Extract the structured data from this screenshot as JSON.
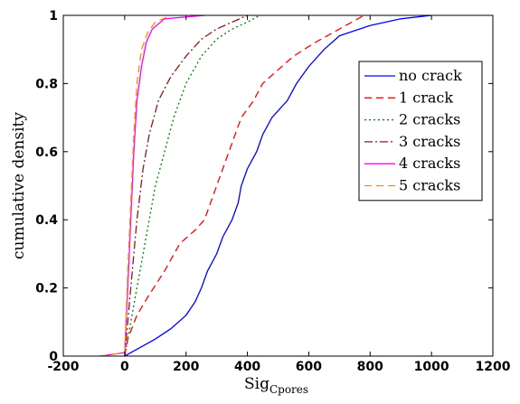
{
  "chart_data": {
    "type": "line",
    "title": "",
    "xlabel_main": "Sig",
    "xlabel_sub": "Cpores",
    "ylabel": "cumulative density",
    "xlim": [
      -200,
      1200
    ],
    "ylim": [
      0,
      1
    ],
    "xticks": [
      -200,
      0,
      200,
      400,
      600,
      800,
      1000,
      1200
    ],
    "yticks": [
      0,
      0.2,
      0.4,
      0.6,
      0.8,
      1
    ],
    "ytick_labels": [
      "0",
      "0.2",
      "0.4",
      "0.6",
      "0.8",
      "1"
    ],
    "grid": false,
    "legend_position": "right",
    "series": [
      {
        "name": "no crack",
        "color": "#0000ff",
        "dash": "",
        "points": [
          [
            0,
            0
          ],
          [
            20,
            0.01
          ],
          [
            60,
            0.03
          ],
          [
            100,
            0.05
          ],
          [
            150,
            0.08
          ],
          [
            200,
            0.12
          ],
          [
            230,
            0.16
          ],
          [
            250,
            0.2
          ],
          [
            270,
            0.25
          ],
          [
            300,
            0.3
          ],
          [
            320,
            0.35
          ],
          [
            350,
            0.4
          ],
          [
            370,
            0.45
          ],
          [
            380,
            0.5
          ],
          [
            400,
            0.55
          ],
          [
            430,
            0.6
          ],
          [
            450,
            0.65
          ],
          [
            480,
            0.7
          ],
          [
            530,
            0.75
          ],
          [
            560,
            0.8
          ],
          [
            600,
            0.85
          ],
          [
            650,
            0.9
          ],
          [
            700,
            0.94
          ],
          [
            800,
            0.97
          ],
          [
            900,
            0.99
          ],
          [
            1000,
            1
          ]
        ]
      },
      {
        "name": "1 crack",
        "color": "#ff0000",
        "dash": "8,5",
        "points": [
          [
            0,
            0
          ],
          [
            10,
            0.05
          ],
          [
            40,
            0.12
          ],
          [
            80,
            0.18
          ],
          [
            130,
            0.25
          ],
          [
            180,
            0.33
          ],
          [
            230,
            0.37
          ],
          [
            260,
            0.4
          ],
          [
            280,
            0.45
          ],
          [
            300,
            0.5
          ],
          [
            320,
            0.55
          ],
          [
            340,
            0.6
          ],
          [
            360,
            0.65
          ],
          [
            380,
            0.7
          ],
          [
            420,
            0.75
          ],
          [
            450,
            0.8
          ],
          [
            500,
            0.84
          ],
          [
            550,
            0.88
          ],
          [
            620,
            0.92
          ],
          [
            700,
            0.96
          ],
          [
            760,
            0.99
          ],
          [
            780,
            1
          ]
        ]
      },
      {
        "name": "2 cracks",
        "color": "#008000",
        "dash": "2,3",
        "points": [
          [
            0,
            0
          ],
          [
            20,
            0.1
          ],
          [
            40,
            0.2
          ],
          [
            60,
            0.3
          ],
          [
            80,
            0.4
          ],
          [
            100,
            0.5
          ],
          [
            130,
            0.6
          ],
          [
            160,
            0.7
          ],
          [
            200,
            0.8
          ],
          [
            250,
            0.88
          ],
          [
            300,
            0.93
          ],
          [
            350,
            0.96
          ],
          [
            400,
            0.98
          ],
          [
            420,
            0.99
          ],
          [
            440,
            1
          ]
        ]
      },
      {
        "name": "3 cracks",
        "color": "#8b1a1a",
        "dash": "9,3,2,3",
        "points": [
          [
            0,
            0
          ],
          [
            20,
            0.2
          ],
          [
            40,
            0.4
          ],
          [
            60,
            0.55
          ],
          [
            80,
            0.65
          ],
          [
            110,
            0.75
          ],
          [
            150,
            0.82
          ],
          [
            200,
            0.88
          ],
          [
            250,
            0.93
          ],
          [
            300,
            0.96
          ],
          [
            350,
            0.98
          ],
          [
            400,
            1
          ]
        ]
      },
      {
        "name": "4 cracks",
        "color": "#ff00ff",
        "dash": "",
        "points": [
          [
            -80,
            0
          ],
          [
            0,
            0.01
          ],
          [
            10,
            0.2
          ],
          [
            20,
            0.4
          ],
          [
            30,
            0.6
          ],
          [
            40,
            0.75
          ],
          [
            55,
            0.85
          ],
          [
            70,
            0.92
          ],
          [
            90,
            0.96
          ],
          [
            130,
            0.99
          ],
          [
            260,
            1
          ]
        ]
      },
      {
        "name": "5 cracks",
        "color": "#ff8c00",
        "dash": "8,5",
        "points": [
          [
            -80,
            0
          ],
          [
            0,
            0.01
          ],
          [
            10,
            0.25
          ],
          [
            20,
            0.45
          ],
          [
            30,
            0.65
          ],
          [
            40,
            0.8
          ],
          [
            55,
            0.9
          ],
          [
            75,
            0.95
          ],
          [
            100,
            0.98
          ],
          [
            150,
            1
          ]
        ]
      }
    ]
  }
}
